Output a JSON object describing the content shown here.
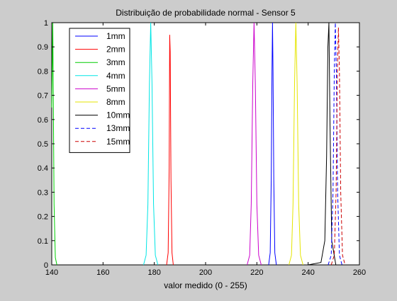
{
  "chart_data": {
    "type": "line",
    "title": "Distribuição de probabilidade normal - Sensor 5",
    "xlabel": "valor medido (0 - 255)",
    "ylabel": "",
    "xlim": [
      140,
      260
    ],
    "ylim": [
      0,
      1
    ],
    "x_ticks": [
      140,
      160,
      180,
      200,
      220,
      240,
      260
    ],
    "y_ticks": [
      0,
      0.1,
      0.2,
      0.3,
      0.4,
      0.5,
      0.6,
      0.7,
      0.8,
      0.9,
      1
    ],
    "x_tick_labels": [
      "140",
      "160",
      "180",
      "200",
      "220",
      "240",
      "260"
    ],
    "y_tick_labels": [
      "0",
      "0.1",
      "0.2",
      "0.3",
      "0.4",
      "0.5",
      "0.6",
      "0.7",
      "0.8",
      "0.9",
      "1"
    ],
    "grid": false,
    "legend_position": "top-left",
    "series": [
      {
        "name": "1mm",
        "color": "#0000ff",
        "dash": "solid",
        "x": [
          224.6,
          225.2,
          225.6,
          225.9,
          226.1,
          226.3,
          226.6,
          227.0,
          227.6
        ],
        "y": [
          0,
          0.05,
          0.35,
          0.8,
          1.0,
          0.8,
          0.35,
          0.05,
          0
        ]
      },
      {
        "name": "2mm",
        "color": "#ff0000",
        "dash": "solid",
        "x": [
          184.8,
          185.4,
          185.8,
          186.0,
          186.2,
          186.5,
          186.9,
          187.4
        ],
        "y": [
          0,
          0.05,
          0.4,
          0.95,
          0.88,
          0.35,
          0.05,
          0
        ]
      },
      {
        "name": "3mm",
        "color": "#00cc00",
        "dash": "solid",
        "x": [
          140.0,
          140.4,
          140.9,
          141.4,
          142.0
        ],
        "y": [
          0.65,
          1.0,
          0.25,
          0.03,
          0
        ]
      },
      {
        "name": "4mm",
        "color": "#00e5e5",
        "dash": "solid",
        "x": [
          175.8,
          176.8,
          177.5,
          178.1,
          178.6,
          179.1,
          179.7,
          180.4,
          181.4
        ],
        "y": [
          0,
          0.04,
          0.25,
          0.75,
          1.0,
          0.75,
          0.25,
          0.04,
          0
        ]
      },
      {
        "name": "5mm",
        "color": "#cc00cc",
        "dash": "solid",
        "x": [
          216.2,
          217.2,
          217.8,
          218.4,
          218.9,
          219.4,
          220.0,
          220.7,
          221.7
        ],
        "y": [
          0,
          0.04,
          0.25,
          0.75,
          1.0,
          0.75,
          0.25,
          0.04,
          0
        ]
      },
      {
        "name": "8mm",
        "color": "#e5e500",
        "dash": "solid",
        "x": [
          232.5,
          233.5,
          234.1,
          234.7,
          235.2,
          235.7,
          236.3,
          237.0,
          238.0
        ],
        "y": [
          0,
          0.04,
          0.25,
          0.75,
          1.0,
          0.75,
          0.25,
          0.04,
          0
        ]
      },
      {
        "name": "10mm",
        "color": "#000000",
        "dash": "solid",
        "x": [
          240.0,
          245.0,
          246.5,
          247.2,
          247.7,
          248.1,
          248.5,
          249.2,
          250.8
        ],
        "y": [
          0,
          0.01,
          0.1,
          0.45,
          0.9,
          1.0,
          0.6,
          0.1,
          0
        ]
      },
      {
        "name": "13mm",
        "color": "#0000ff",
        "dash": "dashed",
        "x": [
          247.8,
          249.0,
          249.7,
          250.2,
          250.6,
          251.0,
          251.5,
          252.2,
          253.2
        ],
        "y": [
          0,
          0.04,
          0.3,
          0.8,
          1.0,
          0.8,
          0.3,
          0.04,
          0
        ]
      },
      {
        "name": "15mm",
        "color": "#cc0000",
        "dash": "dashed",
        "x": [
          249.0,
          250.2,
          250.9,
          251.4,
          251.8,
          252.2,
          252.7,
          253.4,
          254.4
        ],
        "y": [
          0,
          0.04,
          0.3,
          0.8,
          0.98,
          0.8,
          0.3,
          0.04,
          0
        ]
      }
    ]
  }
}
